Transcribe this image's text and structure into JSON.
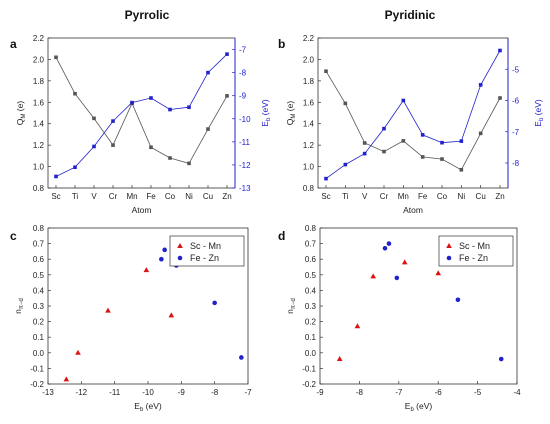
{
  "titles": [
    "Pyrrolic",
    "Pyridinic"
  ],
  "colors": {
    "gray": "#555555",
    "blue": "#2222cc",
    "red": "#dd1111"
  },
  "chart_data": [
    {
      "panel": "a",
      "type": "line",
      "categories": [
        "Sc",
        "Ti",
        "V",
        "Cr",
        "Mn",
        "Fe",
        "Co",
        "Ni",
        "Cu",
        "Zn"
      ],
      "xlabel": "Atom",
      "ylabel": "Q_M (e)",
      "ylabel2": "E_b (eV)",
      "ylim": [
        0.8,
        2.2
      ],
      "yticks": [
        0.8,
        1.0,
        1.2,
        1.4,
        1.6,
        1.8,
        2.0,
        2.2
      ],
      "ylim2": [
        -13,
        -6.5
      ],
      "yticks2": [
        -13,
        -12,
        -11,
        -10,
        -9,
        -8,
        -7
      ],
      "series": [
        {
          "axis": "left",
          "color": "gray",
          "values": [
            2.02,
            1.68,
            1.45,
            1.2,
            1.59,
            1.18,
            1.08,
            1.03,
            1.35,
            1.66
          ]
        },
        {
          "axis": "right",
          "color": "blue",
          "values": [
            -12.5,
            -12.1,
            -11.2,
            -10.1,
            -9.3,
            -9.1,
            -9.6,
            -9.5,
            -8.0,
            -7.2
          ]
        }
      ]
    },
    {
      "panel": "b",
      "type": "line",
      "categories": [
        "Sc",
        "Ti",
        "V",
        "Cr",
        "Mn",
        "Fe",
        "Co",
        "Ni",
        "Cu",
        "Zn"
      ],
      "xlabel": "Atom",
      "ylabel": "Q_M (e)",
      "ylabel2": "E_b (eV)",
      "ylim": [
        0.8,
        2.2
      ],
      "yticks": [
        0.8,
        1.0,
        1.2,
        1.4,
        1.6,
        1.8,
        2.0,
        2.2
      ],
      "ylim2": [
        -8.8,
        -4.0
      ],
      "yticks2": [
        -8,
        -7,
        -6,
        -5
      ],
      "series": [
        {
          "axis": "left",
          "color": "gray",
          "values": [
            1.89,
            1.59,
            1.22,
            1.14,
            1.24,
            1.09,
            1.07,
            0.97,
            1.31,
            1.64
          ]
        },
        {
          "axis": "right",
          "color": "blue",
          "values": [
            -8.5,
            -8.05,
            -7.7,
            -6.9,
            -6.0,
            -7.1,
            -7.35,
            -7.3,
            -5.5,
            -4.4
          ]
        }
      ]
    },
    {
      "panel": "c",
      "type": "scatter",
      "xlabel": "E_b (eV)",
      "ylabel": "n_π−d",
      "xlim": [
        -13,
        -7
      ],
      "xticks": [
        -13,
        -12,
        -11,
        -10,
        -9,
        -8,
        -7
      ],
      "ylim": [
        -0.2,
        0.8
      ],
      "yticks": [
        -0.2,
        -0.1,
        0.0,
        0.1,
        0.2,
        0.3,
        0.4,
        0.5,
        0.6,
        0.7,
        0.8
      ],
      "legend": "top-right",
      "series": [
        {
          "name": "Sc - Mn",
          "marker": "triangle",
          "color": "red",
          "points": [
            [
              -12.45,
              -0.17
            ],
            [
              -12.1,
              0.0
            ],
            [
              -11.2,
              0.27
            ],
            [
              -10.05,
              0.53
            ],
            [
              -9.3,
              0.24
            ]
          ]
        },
        {
          "name": "Fe - Zn",
          "marker": "circle",
          "color": "blue",
          "points": [
            [
              -9.6,
              0.6
            ],
            [
              -9.5,
              0.66
            ],
            [
              -9.15,
              0.56
            ],
            [
              -8.0,
              0.32
            ],
            [
              -7.2,
              -0.03
            ]
          ]
        }
      ]
    },
    {
      "panel": "d",
      "type": "scatter",
      "xlabel": "E_b (eV)",
      "ylabel": "n_π−d",
      "xlim": [
        -9,
        -4
      ],
      "xticks": [
        -9,
        -8,
        -7,
        -6,
        -5,
        -4
      ],
      "ylim": [
        -0.2,
        0.8
      ],
      "yticks": [
        -0.2,
        -0.1,
        0.0,
        0.1,
        0.2,
        0.3,
        0.4,
        0.5,
        0.6,
        0.7,
        0.8
      ],
      "legend": "top-right",
      "series": [
        {
          "name": "Sc - Mn",
          "marker": "triangle",
          "color": "red",
          "points": [
            [
              -8.5,
              -0.04
            ],
            [
              -8.05,
              0.17
            ],
            [
              -7.65,
              0.49
            ],
            [
              -6.85,
              0.58
            ],
            [
              -6.0,
              0.51
            ]
          ]
        },
        {
          "name": "Fe - Zn",
          "marker": "circle",
          "color": "blue",
          "points": [
            [
              -7.35,
              0.67
            ],
            [
              -7.25,
              0.7
            ],
            [
              -7.05,
              0.48
            ],
            [
              -5.5,
              0.34
            ],
            [
              -4.4,
              -0.04
            ]
          ]
        }
      ]
    }
  ]
}
